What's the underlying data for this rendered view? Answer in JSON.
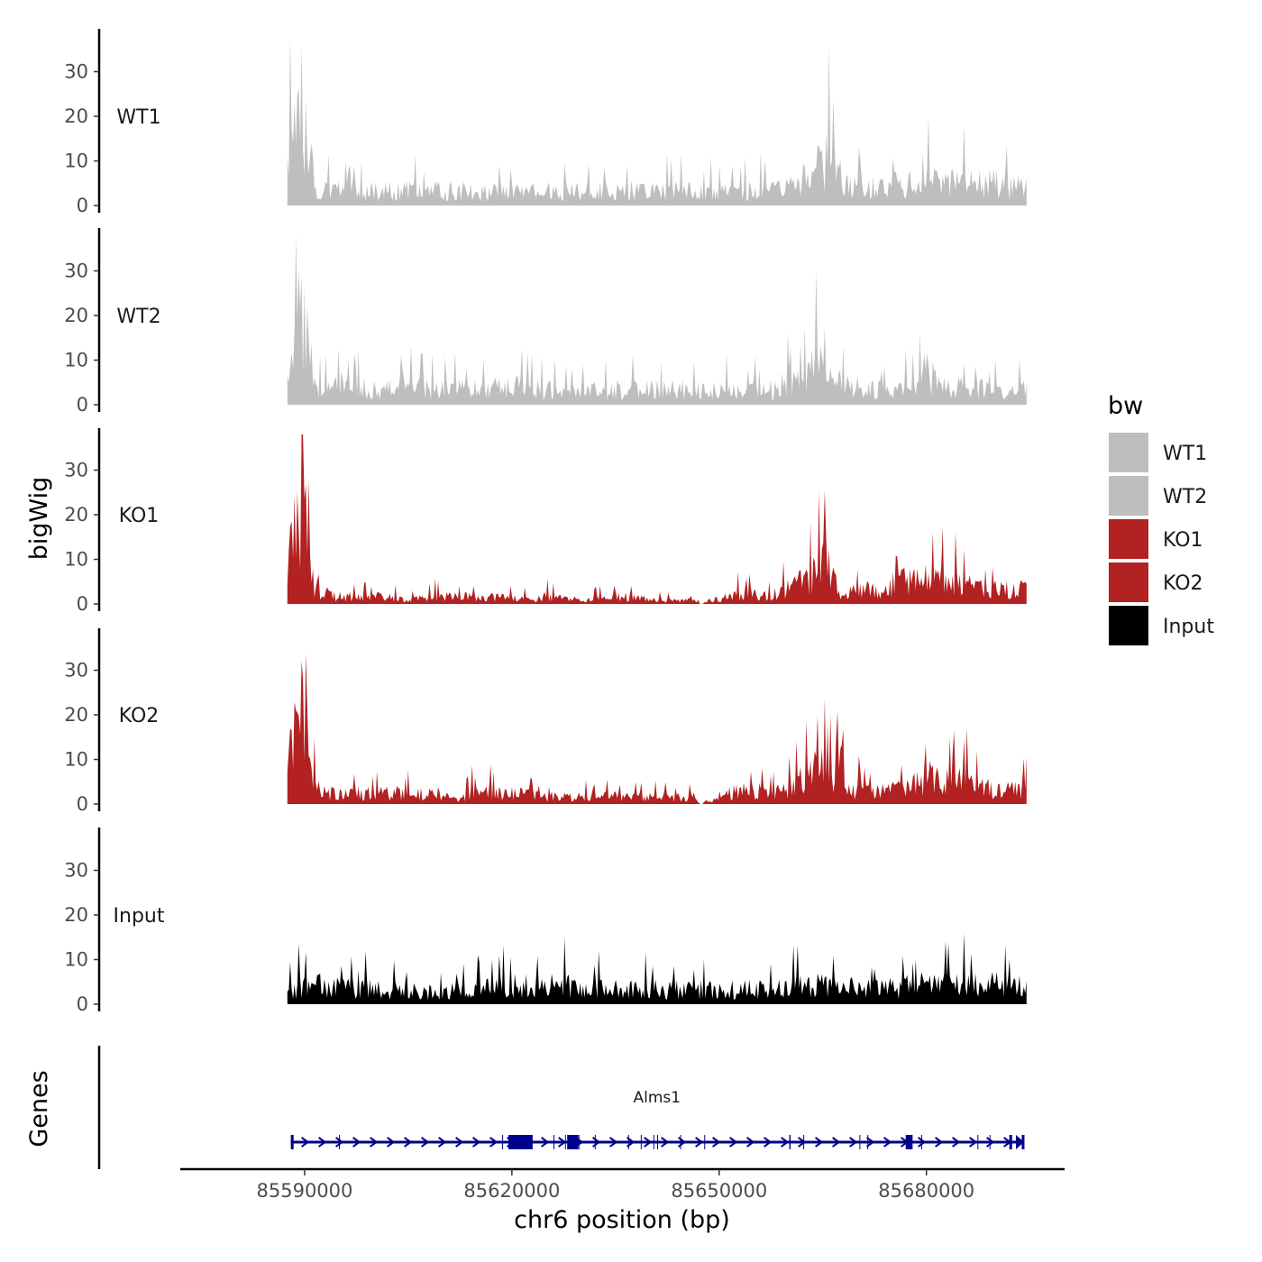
{
  "chart_data": {
    "type": "area",
    "title": "",
    "ylabel": "bigWig",
    "genes_label": "Genes",
    "xlabel": "chr6 position (bp)",
    "xlim": [
      85572000,
      85700000
    ],
    "data_range": [
      85587500,
      85694500
    ],
    "x_ticks": [
      85590000,
      85620000,
      85650000,
      85680000
    ],
    "x_tick_labels": [
      "85590000",
      "85620000",
      "85650000",
      "85680000"
    ],
    "ylim": [
      0,
      40
    ],
    "y_ticks": [
      0,
      10,
      20,
      30
    ],
    "y_tick_labels": [
      "0",
      "10",
      "20",
      "30"
    ],
    "legend": {
      "title": "bw",
      "items": [
        {
          "label": "WT1",
          "color": "#bebebe"
        },
        {
          "label": "WT2",
          "color": "#bebebe"
        },
        {
          "label": "KO1",
          "color": "#b22222"
        },
        {
          "label": "KO2",
          "color": "#b22222"
        },
        {
          "label": "Input",
          "color": "#000000"
        }
      ]
    },
    "series": [
      {
        "name": "WT1",
        "color": "#bebebe",
        "profile": [
          [
            0,
            14
          ],
          [
            0.3,
            16
          ],
          [
            0.6,
            20
          ],
          [
            1,
            24
          ],
          [
            1.3,
            26
          ],
          [
            1.6,
            33
          ],
          [
            2,
            28
          ],
          [
            2.4,
            26
          ],
          [
            2.8,
            25
          ],
          [
            3.1,
            20
          ],
          [
            3.4,
            10
          ],
          [
            3.7,
            4
          ],
          [
            5,
            4
          ],
          [
            7,
            4
          ],
          [
            10,
            4
          ],
          [
            13,
            4
          ],
          [
            15,
            4
          ],
          [
            17,
            4
          ],
          [
            20,
            4
          ],
          [
            25,
            4
          ],
          [
            30,
            4
          ],
          [
            32,
            4
          ],
          [
            35,
            4
          ],
          [
            38,
            4
          ],
          [
            40,
            4
          ],
          [
            45,
            4
          ],
          [
            48,
            4
          ],
          [
            50,
            4
          ],
          [
            55,
            4
          ],
          [
            60,
            4
          ],
          [
            65,
            4
          ],
          [
            68,
            5
          ],
          [
            70,
            7
          ],
          [
            72,
            10
          ],
          [
            73,
            13
          ],
          [
            75,
            8
          ],
          [
            76,
            5
          ],
          [
            80,
            5
          ],
          [
            85,
            6
          ],
          [
            86,
            11
          ],
          [
            87,
            6
          ],
          [
            90,
            6
          ],
          [
            95,
            6
          ],
          [
            100,
            5
          ]
        ],
        "noise": 4
      },
      {
        "name": "WT2",
        "color": "#bebebe",
        "profile": [
          [
            0,
            6
          ],
          [
            0.3,
            10
          ],
          [
            0.8,
            15
          ],
          [
            1.2,
            18
          ],
          [
            1.5,
            24
          ],
          [
            2,
            22
          ],
          [
            2.4,
            26
          ],
          [
            2.8,
            21
          ],
          [
            3.1,
            15
          ],
          [
            3.4,
            8
          ],
          [
            3.7,
            5
          ],
          [
            5,
            4
          ],
          [
            7,
            5
          ],
          [
            8,
            9
          ],
          [
            9,
            5
          ],
          [
            12,
            4
          ],
          [
            15,
            4
          ],
          [
            18,
            5
          ],
          [
            20,
            4
          ],
          [
            25,
            4
          ],
          [
            30,
            5
          ],
          [
            35,
            4
          ],
          [
            38,
            3
          ],
          [
            40,
            4
          ],
          [
            45,
            4
          ],
          [
            50,
            4
          ],
          [
            55,
            4
          ],
          [
            60,
            4
          ],
          [
            65,
            4
          ],
          [
            68,
            6
          ],
          [
            70,
            8
          ],
          [
            71,
            11
          ],
          [
            73,
            8
          ],
          [
            75,
            5
          ],
          [
            80,
            4
          ],
          [
            85,
            5
          ],
          [
            86,
            10
          ],
          [
            88,
            6
          ],
          [
            90,
            5
          ],
          [
            95,
            4
          ],
          [
            100,
            4
          ]
        ],
        "noise": 4
      },
      {
        "name": "KO1",
        "color": "#b22222",
        "profile": [
          [
            0,
            15
          ],
          [
            0.3,
            18
          ],
          [
            0.8,
            22
          ],
          [
            1.2,
            25
          ],
          [
            1.6,
            31
          ],
          [
            2,
            28
          ],
          [
            2.4,
            34
          ],
          [
            2.8,
            24
          ],
          [
            3.1,
            18
          ],
          [
            3.4,
            8
          ],
          [
            3.8,
            4
          ],
          [
            5,
            3
          ],
          [
            7,
            2
          ],
          [
            10,
            2
          ],
          [
            13,
            2
          ],
          [
            16,
            1
          ],
          [
            20,
            2
          ],
          [
            25,
            2
          ],
          [
            30,
            2
          ],
          [
            33,
            1
          ],
          [
            35,
            2
          ],
          [
            40,
            1
          ],
          [
            45,
            2
          ],
          [
            50,
            1
          ],
          [
            55,
            1
          ],
          [
            56,
            0
          ],
          [
            57,
            1
          ],
          [
            60,
            2
          ],
          [
            62,
            3
          ],
          [
            65,
            2
          ],
          [
            70,
            6
          ],
          [
            72,
            9
          ],
          [
            73,
            12
          ],
          [
            74,
            6
          ],
          [
            75,
            3
          ],
          [
            80,
            4
          ],
          [
            85,
            7
          ],
          [
            88,
            7
          ],
          [
            90,
            6
          ],
          [
            93,
            5
          ],
          [
            95,
            4
          ],
          [
            100,
            4
          ]
        ],
        "noise": 4
      },
      {
        "name": "KO2",
        "color": "#b22222",
        "profile": [
          [
            0,
            12
          ],
          [
            0.3,
            15
          ],
          [
            0.8,
            20
          ],
          [
            1.2,
            23
          ],
          [
            1.6,
            20
          ],
          [
            2,
            24
          ],
          [
            2.4,
            26
          ],
          [
            2.8,
            20
          ],
          [
            3.1,
            16
          ],
          [
            3.4,
            9
          ],
          [
            4,
            4
          ],
          [
            5,
            3
          ],
          [
            7,
            3
          ],
          [
            10,
            3
          ],
          [
            13,
            3
          ],
          [
            16,
            3
          ],
          [
            20,
            3
          ],
          [
            23,
            1
          ],
          [
            25,
            3
          ],
          [
            30,
            3
          ],
          [
            35,
            2
          ],
          [
            40,
            2
          ],
          [
            45,
            2
          ],
          [
            50,
            2
          ],
          [
            55,
            2
          ],
          [
            56,
            0
          ],
          [
            58,
            2
          ],
          [
            60,
            3
          ],
          [
            62,
            4
          ],
          [
            65,
            3
          ],
          [
            68,
            4
          ],
          [
            70,
            7
          ],
          [
            72,
            10
          ],
          [
            74,
            8
          ],
          [
            76,
            4
          ],
          [
            80,
            3
          ],
          [
            85,
            5
          ],
          [
            87,
            7
          ],
          [
            88,
            6
          ],
          [
            92,
            6
          ],
          [
            95,
            4
          ],
          [
            100,
            4
          ]
        ],
        "noise": 4
      },
      {
        "name": "Input",
        "color": "#000000",
        "profile": [
          [
            0,
            3
          ],
          [
            2,
            5
          ],
          [
            5,
            5
          ],
          [
            10,
            4
          ],
          [
            15,
            4
          ],
          [
            20,
            3
          ],
          [
            25,
            4
          ],
          [
            30,
            5
          ],
          [
            35,
            5
          ],
          [
            40,
            5
          ],
          [
            45,
            4
          ],
          [
            50,
            4
          ],
          [
            55,
            4
          ],
          [
            60,
            4
          ],
          [
            65,
            4
          ],
          [
            70,
            5
          ],
          [
            75,
            5
          ],
          [
            80,
            4
          ],
          [
            85,
            5
          ],
          [
            90,
            6
          ],
          [
            95,
            6
          ],
          [
            100,
            5
          ]
        ],
        "noise": 5
      }
    ],
    "gene_track": {
      "gene_name": "Alms1",
      "strand": "+",
      "start": 85588000,
      "end": 85694000,
      "exons": [
        [
          85588000,
          85588400
        ],
        [
          85619500,
          85623000
        ],
        [
          85628000,
          85629600
        ],
        [
          85677000,
          85678000
        ],
        [
          85692000,
          85692400
        ],
        [
          85693800,
          85694000
        ]
      ]
    }
  }
}
